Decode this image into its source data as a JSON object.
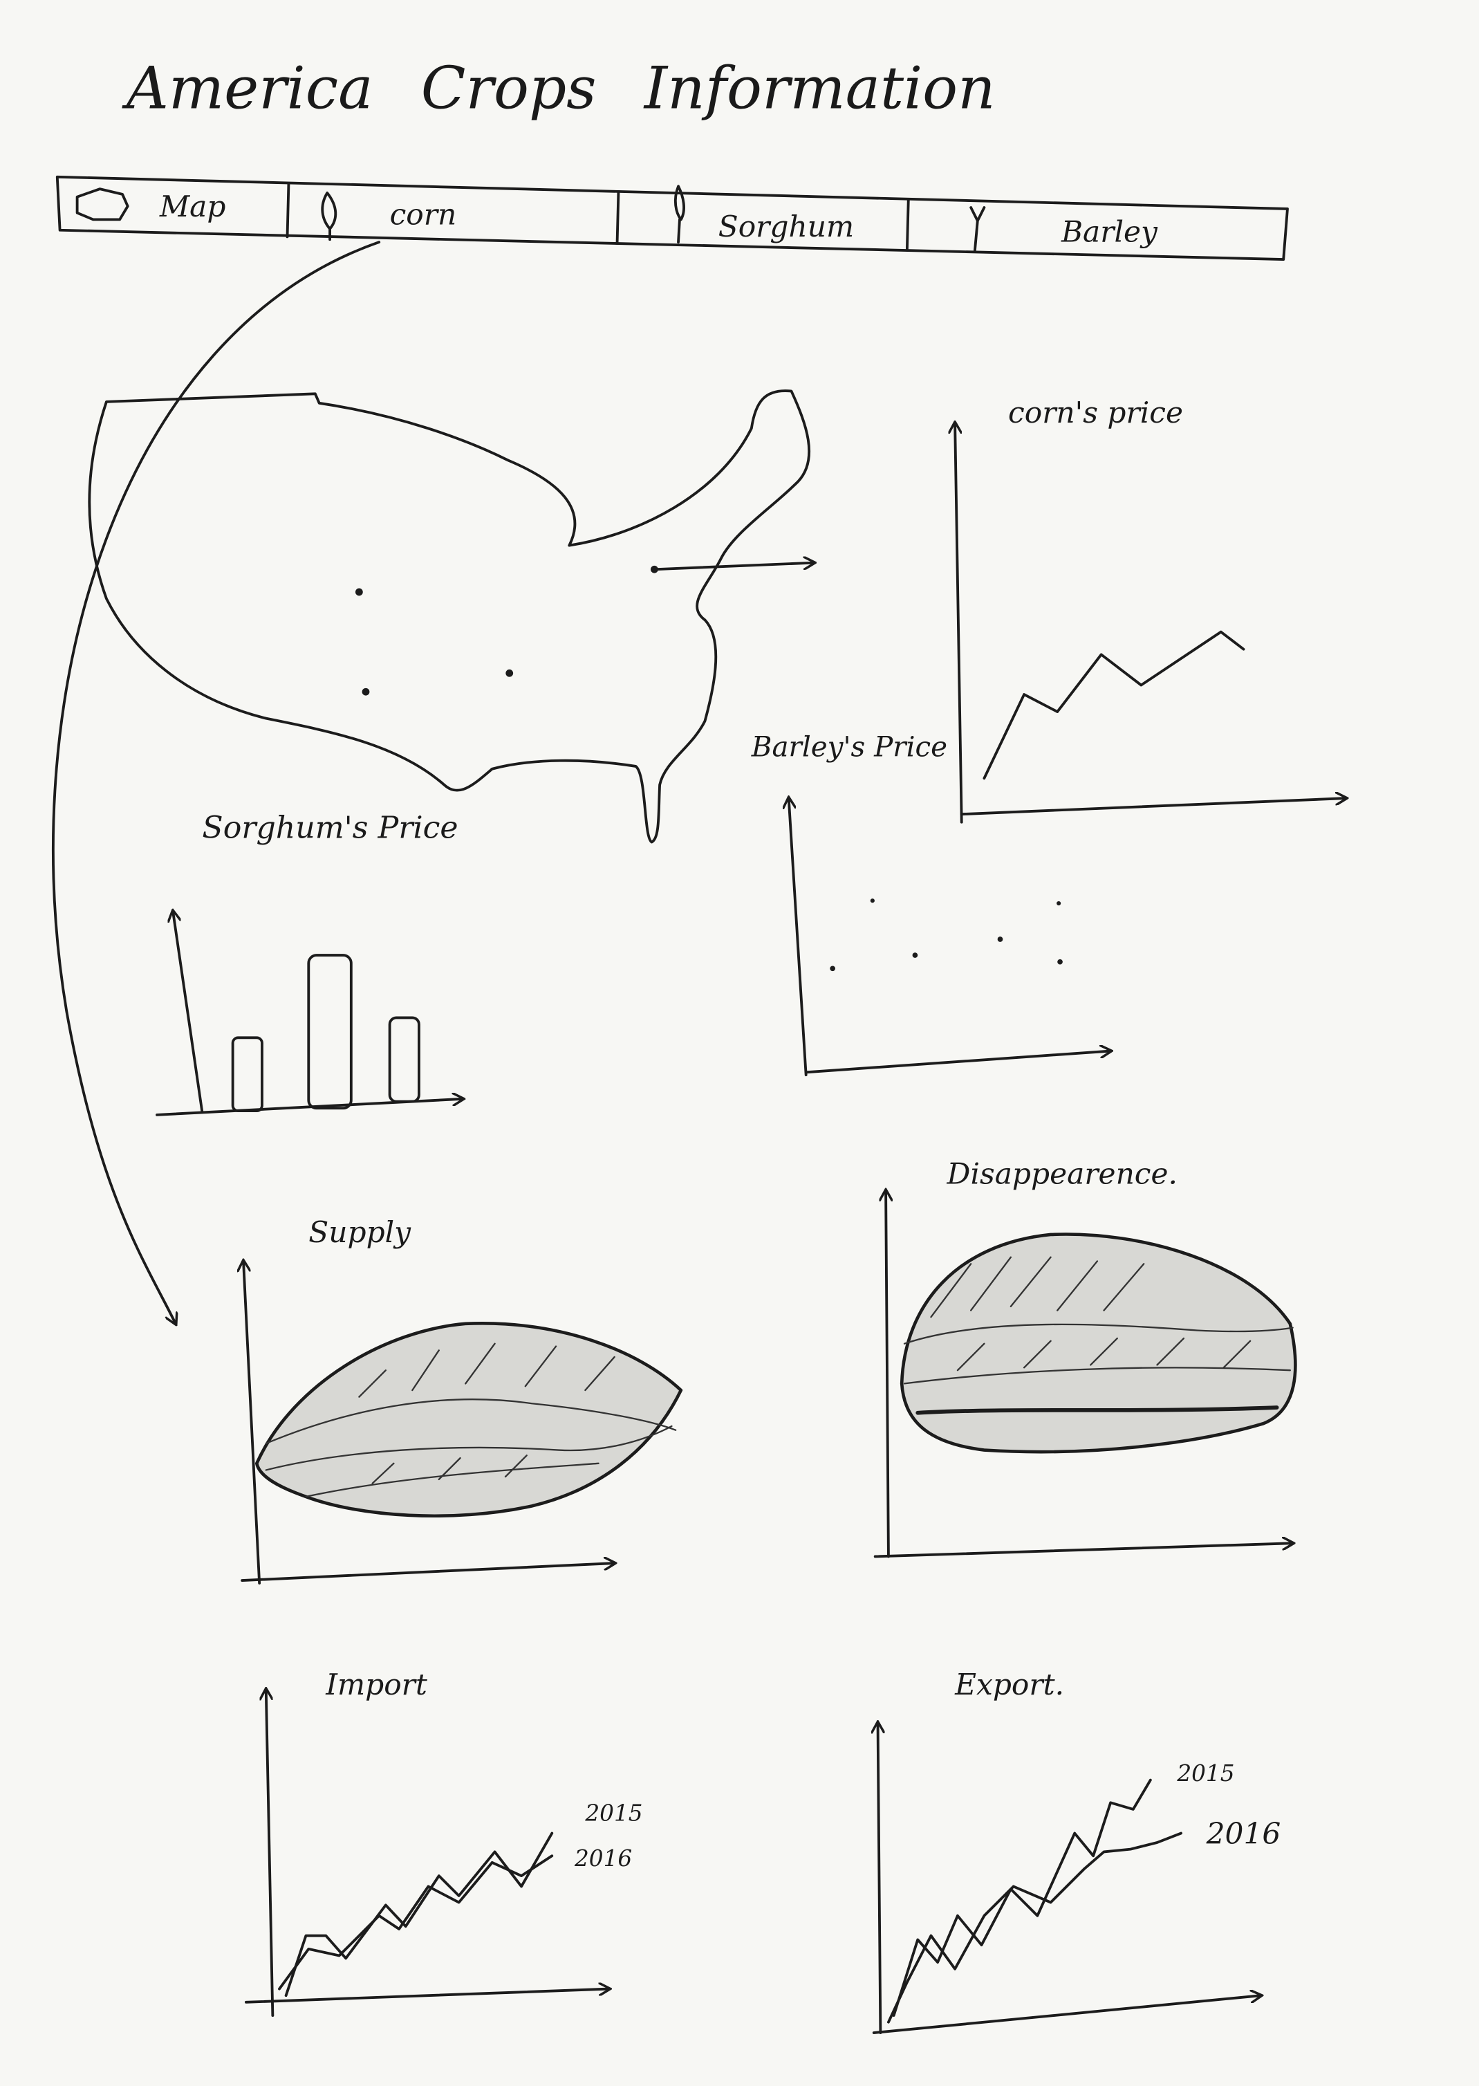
{
  "header": {
    "title": "America Crops Information"
  },
  "tabs": [
    {
      "label": "Map"
    },
    {
      "label": "corn"
    },
    {
      "label": "Sorghum"
    },
    {
      "label": "Barley"
    }
  ],
  "panels": {
    "corn_price": {
      "title": "corn's price"
    },
    "barley_price": {
      "title": "Barley's Price"
    },
    "sorghum_price": {
      "title": "Sorghum's Price"
    },
    "supply": {
      "title": "Supply"
    },
    "disappearance": {
      "title": "Disappearence."
    },
    "import": {
      "title": "Import",
      "legend": [
        "2015",
        "2016"
      ]
    },
    "export": {
      "title": "Export.",
      "legend": [
        "2015",
        "2016"
      ]
    }
  }
}
